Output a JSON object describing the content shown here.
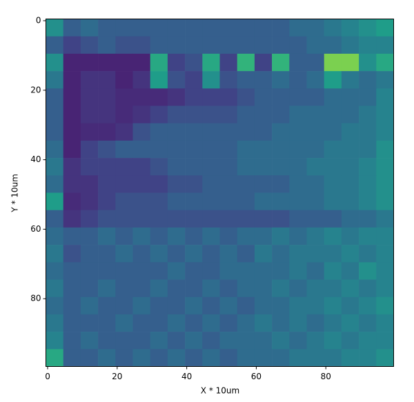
{
  "chart_data": {
    "type": "heatmap",
    "colormap": "viridis",
    "xlabel": "X * 10um",
    "ylabel": "Y * 10um",
    "xlim": [
      -0.5,
      99.5
    ],
    "ylim": [
      99.5,
      -0.5
    ],
    "xticks": [
      0,
      20,
      40,
      60,
      80
    ],
    "yticks": [
      0,
      20,
      40,
      60,
      80
    ],
    "x": [
      2,
      7,
      12,
      17,
      22,
      27,
      32,
      37,
      42,
      47,
      52,
      57,
      62,
      67,
      72,
      77,
      82,
      87,
      92,
      97
    ],
    "y": [
      2,
      7,
      12,
      17,
      22,
      27,
      32,
      37,
      42,
      47,
      52,
      57,
      62,
      67,
      72,
      77,
      82,
      87,
      92,
      97
    ],
    "values": [
      [
        0.5,
        0.3,
        0.35,
        0.3,
        0.3,
        0.3,
        0.3,
        0.3,
        0.3,
        0.3,
        0.3,
        0.3,
        0.3,
        0.3,
        0.35,
        0.35,
        0.4,
        0.45,
        0.5,
        0.55
      ],
      [
        0.3,
        0.2,
        0.25,
        0.3,
        0.25,
        0.25,
        0.3,
        0.3,
        0.3,
        0.3,
        0.3,
        0.3,
        0.3,
        0.3,
        0.3,
        0.35,
        0.35,
        0.4,
        0.45,
        0.45
      ],
      [
        0.5,
        0.1,
        0.1,
        0.1,
        0.1,
        0.1,
        0.6,
        0.2,
        0.25,
        0.6,
        0.2,
        0.65,
        0.2,
        0.65,
        0.3,
        0.3,
        0.8,
        0.8,
        0.5,
        0.6
      ],
      [
        0.4,
        0.1,
        0.15,
        0.15,
        0.1,
        0.15,
        0.55,
        0.25,
        0.2,
        0.5,
        0.25,
        0.3,
        0.3,
        0.35,
        0.3,
        0.35,
        0.55,
        0.4,
        0.35,
        0.4
      ],
      [
        0.3,
        0.1,
        0.15,
        0.15,
        0.12,
        0.12,
        0.12,
        0.15,
        0.2,
        0.2,
        0.2,
        0.25,
        0.3,
        0.3,
        0.3,
        0.3,
        0.35,
        0.35,
        0.35,
        0.45
      ],
      [
        0.3,
        0.1,
        0.15,
        0.15,
        0.12,
        0.15,
        0.2,
        0.25,
        0.25,
        0.25,
        0.25,
        0.3,
        0.3,
        0.3,
        0.35,
        0.35,
        0.35,
        0.35,
        0.4,
        0.45
      ],
      [
        0.3,
        0.1,
        0.12,
        0.12,
        0.15,
        0.25,
        0.3,
        0.3,
        0.3,
        0.3,
        0.3,
        0.3,
        0.3,
        0.35,
        0.35,
        0.35,
        0.35,
        0.4,
        0.4,
        0.45
      ],
      [
        0.35,
        0.1,
        0.2,
        0.25,
        0.3,
        0.3,
        0.3,
        0.3,
        0.3,
        0.3,
        0.3,
        0.35,
        0.35,
        0.35,
        0.35,
        0.35,
        0.4,
        0.4,
        0.4,
        0.5
      ],
      [
        0.4,
        0.15,
        0.2,
        0.2,
        0.2,
        0.2,
        0.25,
        0.3,
        0.3,
        0.3,
        0.3,
        0.35,
        0.35,
        0.35,
        0.35,
        0.4,
        0.4,
        0.4,
        0.45,
        0.5
      ],
      [
        0.35,
        0.15,
        0.15,
        0.2,
        0.2,
        0.2,
        0.2,
        0.25,
        0.25,
        0.3,
        0.3,
        0.3,
        0.3,
        0.3,
        0.35,
        0.35,
        0.4,
        0.4,
        0.45,
        0.5
      ],
      [
        0.55,
        0.12,
        0.15,
        0.2,
        0.25,
        0.25,
        0.25,
        0.3,
        0.3,
        0.3,
        0.3,
        0.3,
        0.35,
        0.35,
        0.35,
        0.35,
        0.4,
        0.4,
        0.45,
        0.5
      ],
      [
        0.3,
        0.15,
        0.2,
        0.25,
        0.25,
        0.25,
        0.25,
        0.25,
        0.25,
        0.25,
        0.25,
        0.25,
        0.25,
        0.25,
        0.3,
        0.3,
        0.3,
        0.35,
        0.35,
        0.4
      ],
      [
        0.35,
        0.3,
        0.3,
        0.35,
        0.3,
        0.35,
        0.3,
        0.35,
        0.3,
        0.35,
        0.3,
        0.35,
        0.35,
        0.4,
        0.35,
        0.4,
        0.45,
        0.4,
        0.45,
        0.45
      ],
      [
        0.4,
        0.25,
        0.3,
        0.3,
        0.35,
        0.3,
        0.35,
        0.3,
        0.35,
        0.3,
        0.35,
        0.3,
        0.4,
        0.35,
        0.4,
        0.4,
        0.4,
        0.45,
        0.4,
        0.45
      ],
      [
        0.35,
        0.3,
        0.3,
        0.3,
        0.3,
        0.3,
        0.3,
        0.35,
        0.3,
        0.3,
        0.35,
        0.35,
        0.35,
        0.35,
        0.4,
        0.35,
        0.45,
        0.4,
        0.5,
        0.45
      ],
      [
        0.4,
        0.3,
        0.3,
        0.35,
        0.3,
        0.3,
        0.35,
        0.3,
        0.3,
        0.35,
        0.3,
        0.35,
        0.35,
        0.4,
        0.35,
        0.4,
        0.4,
        0.45,
        0.4,
        0.45
      ],
      [
        0.35,
        0.3,
        0.35,
        0.3,
        0.3,
        0.35,
        0.3,
        0.3,
        0.35,
        0.3,
        0.35,
        0.3,
        0.35,
        0.35,
        0.4,
        0.4,
        0.45,
        0.4,
        0.45,
        0.5
      ],
      [
        0.4,
        0.3,
        0.3,
        0.3,
        0.35,
        0.3,
        0.3,
        0.35,
        0.3,
        0.35,
        0.3,
        0.35,
        0.4,
        0.35,
        0.4,
        0.35,
        0.4,
        0.45,
        0.4,
        0.45
      ],
      [
        0.45,
        0.3,
        0.35,
        0.3,
        0.3,
        0.3,
        0.35,
        0.3,
        0.35,
        0.3,
        0.35,
        0.35,
        0.35,
        0.4,
        0.35,
        0.4,
        0.45,
        0.4,
        0.45,
        0.45
      ],
      [
        0.6,
        0.3,
        0.3,
        0.35,
        0.3,
        0.35,
        0.3,
        0.35,
        0.3,
        0.35,
        0.3,
        0.35,
        0.35,
        0.35,
        0.4,
        0.4,
        0.4,
        0.45,
        0.45,
        0.5
      ]
    ]
  }
}
